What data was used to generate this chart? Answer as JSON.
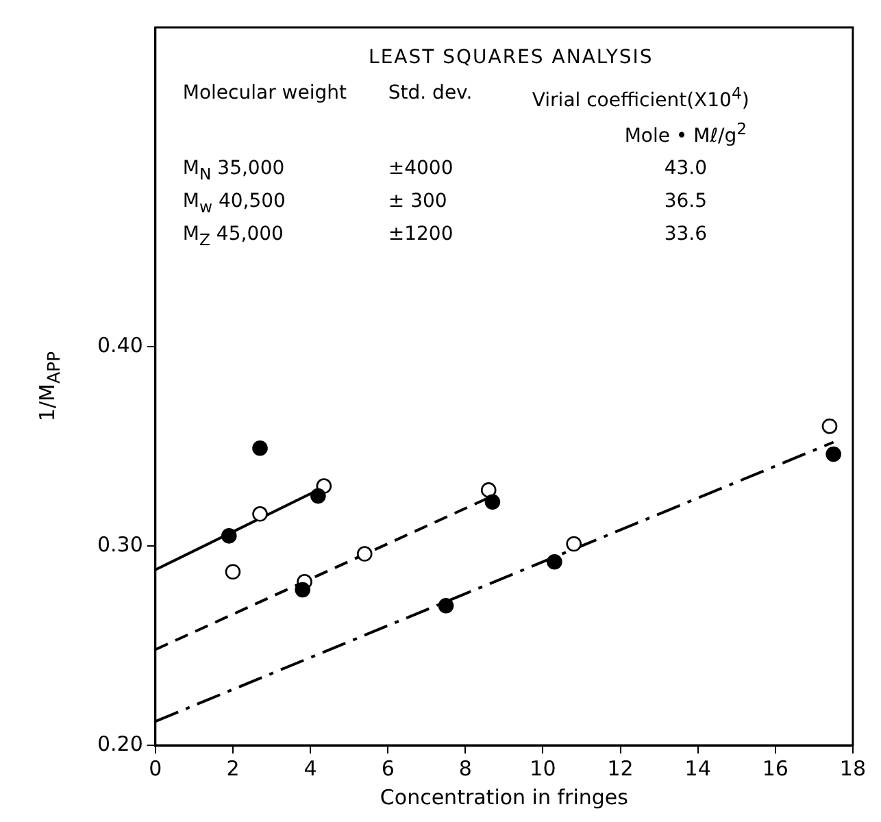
{
  "chart_data": {
    "type": "scatter",
    "xlabel": "Concentration in fringes",
    "ylabel": "1/M$_{APP}$",
    "xlim": [
      0,
      18
    ],
    "xticks": [
      0,
      2,
      4,
      6,
      8,
      10,
      12,
      14,
      16,
      18
    ],
    "ylim": [
      0.2,
      0.56
    ],
    "yticks": [
      {
        "value": 0.2,
        "label": "0.20"
      },
      {
        "value": 0.3,
        "label": "0.30"
      },
      {
        "value": 0.4,
        "label": "0.40"
      }
    ],
    "grid": false,
    "legend": false,
    "series": [
      {
        "marker": "circle",
        "color": "#000000",
        "x": [
          1.9,
          2.7,
          4.2,
          3.8,
          7.5,
          8.7,
          10.3,
          17.5
        ],
        "values": [
          0.305,
          0.349,
          0.325,
          0.278,
          0.27,
          0.322,
          0.292,
          0.346
        ]
      },
      {
        "marker": "circle",
        "color": "#ffffff",
        "x": [
          2.0,
          2.7,
          4.35,
          3.85,
          5.4,
          8.6,
          10.8,
          17.4
        ],
        "values": [
          0.287,
          0.316,
          0.33,
          0.282,
          0.296,
          0.328,
          0.301,
          0.36
        ]
      },
      {
        "type": "line",
        "marker": "none",
        "color": "#000000",
        "line_style": "solid",
        "x": [
          0,
          4.3
        ],
        "values": [
          0.288,
          0.329
        ]
      },
      {
        "type": "line",
        "marker": "none",
        "color": "#000000",
        "line_style": "dashed",
        "x": [
          0,
          8.7
        ],
        "values": [
          0.248,
          0.325
        ]
      },
      {
        "type": "line",
        "marker": "none",
        "color": "#000000",
        "line_style": "dashdot",
        "x": [
          0,
          17.5
        ],
        "values": [
          0.212,
          0.352
        ]
      }
    ],
    "annotations": [
      "LEAST SQUARES ANALYSIS",
      "Molecular weight",
      "Std. dev.",
      "Virial coefficient(X10$^{4}$)",
      "Mole • Mℓ/g$^{2}$",
      "M$_{N}$ 35,000",
      "±4000",
      "43.0",
      "M$_{w}$ 40,500",
      "± 300",
      "36.5",
      "M$_{Z}$ 45,000",
      "±1200",
      "33.6"
    ]
  }
}
